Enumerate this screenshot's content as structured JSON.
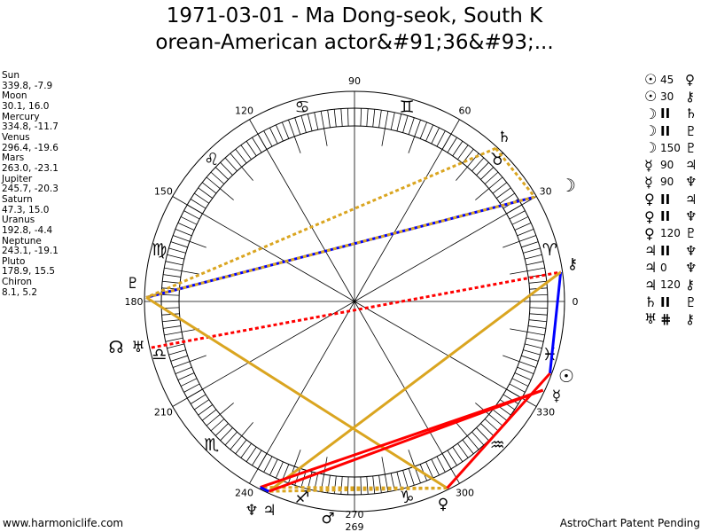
{
  "header": {
    "title_line1": "1971-03-01 - Ma Dong-seok, South K",
    "title_line2": "orean-American actor&#91;36&#93;..."
  },
  "planets": [
    {
      "name": "Sun",
      "coords": "339.8, -7.9",
      "lon": 339.8,
      "glyph": "☉"
    },
    {
      "name": "Moon",
      "coords": "30.1, 16.0",
      "lon": 30.1,
      "glyph": "☽"
    },
    {
      "name": "Mercury",
      "coords": "334.8, -11.7",
      "lon": 334.8,
      "glyph": "☿"
    },
    {
      "name": "Venus",
      "coords": "296.4, -19.6",
      "lon": 296.4,
      "glyph": "♀"
    },
    {
      "name": "Mars",
      "coords": "263.0, -23.1",
      "lon": 263.0,
      "glyph": "♂"
    },
    {
      "name": "Jupiter",
      "coords": "245.7, -20.3",
      "lon": 245.7,
      "glyph": "♃"
    },
    {
      "name": "Saturn",
      "coords": "47.3, 15.0",
      "lon": 47.3,
      "glyph": "♄"
    },
    {
      "name": "Uranus",
      "coords": "192.8, -4.4",
      "lon": 192.8,
      "glyph": "♅"
    },
    {
      "name": "Neptune",
      "coords": "243.1, -19.1",
      "lon": 243.1,
      "glyph": "♆"
    },
    {
      "name": "Pluto",
      "coords": "178.9, 15.5",
      "lon": 178.9,
      "glyph": "♇"
    },
    {
      "name": "Chiron",
      "coords": "8.1, 5.2",
      "lon": 8.1,
      "glyph": "⚷"
    }
  ],
  "north_node_glyph": "☊",
  "signs": [
    "♈",
    "♉",
    "♊",
    "♋",
    "♌",
    "♍",
    "♎",
    "♏",
    "♐",
    "♑",
    "♒",
    "♓"
  ],
  "degree_labels": [
    "0",
    "30",
    "60",
    "90",
    "120",
    "150",
    "180",
    "210",
    "240",
    "270",
    "300",
    "330"
  ],
  "extra_label": "269",
  "aspects": [
    {
      "p1": "☉",
      "type": "45",
      "p2": "♀"
    },
    {
      "p1": "☉",
      "type": "30",
      "p2": "⚷"
    },
    {
      "p1": "☽",
      "type": "II",
      "p2": "♄"
    },
    {
      "p1": "☽",
      "type": "II",
      "p2": "♇"
    },
    {
      "p1": "☽",
      "type": "150",
      "p2": "♇"
    },
    {
      "p1": "☿",
      "type": "90",
      "p2": "♃"
    },
    {
      "p1": "☿",
      "type": "90",
      "p2": "♆"
    },
    {
      "p1": "♀",
      "type": "II",
      "p2": "♃"
    },
    {
      "p1": "♀",
      "type": "II",
      "p2": "♆"
    },
    {
      "p1": "♀",
      "type": "120",
      "p2": "♇"
    },
    {
      "p1": "♃",
      "type": "II",
      "p2": "♆"
    },
    {
      "p1": "♃",
      "type": "0",
      "p2": "♆"
    },
    {
      "p1": "♃",
      "type": "120",
      "p2": "⚷"
    },
    {
      "p1": "♄",
      "type": "II",
      "p2": "♇"
    },
    {
      "p1": "♅",
      "type": "⋕",
      "p2": "⚷"
    }
  ],
  "aspect_lines": [
    {
      "a": "Moon",
      "b": "Pluto",
      "color": "#0000FF",
      "style": "solid"
    },
    {
      "a": "Moon",
      "b": "Pluto",
      "color": "#DAA520",
      "style": "dotted"
    },
    {
      "a": "Saturn",
      "b": "Moon",
      "color": "#DAA520",
      "style": "dotted"
    },
    {
      "a": "Saturn",
      "b": "Pluto",
      "color": "#DAA520",
      "style": "dotted"
    },
    {
      "a": "Sun",
      "b": "Chiron",
      "color": "#0000FF",
      "style": "solid"
    },
    {
      "a": "Uranus",
      "b": "Chiron",
      "color": "#FF0000",
      "style": "dotted"
    },
    {
      "a": "Venus",
      "b": "Pluto",
      "color": "#DAA520",
      "style": "solid"
    },
    {
      "a": "Jupiter",
      "b": "Chiron",
      "color": "#DAA520",
      "style": "solid"
    },
    {
      "a": "Venus",
      "b": "Jupiter",
      "color": "#DAA520",
      "style": "dotted"
    },
    {
      "a": "Venus",
      "b": "Neptune",
      "color": "#DAA520",
      "style": "dotted"
    },
    {
      "a": "Mercury",
      "b": "Jupiter",
      "color": "#FF0000",
      "style": "solid"
    },
    {
      "a": "Mercury",
      "b": "Neptune",
      "color": "#FF0000",
      "style": "solid"
    },
    {
      "a": "Sun",
      "b": "Venus",
      "color": "#FF0000",
      "style": "solid"
    },
    {
      "a": "Jupiter",
      "b": "Neptune",
      "color": "#0000FF",
      "style": "solid"
    }
  ],
  "footer": {
    "left": "www.harmoniclife.com",
    "right": "AstroChart Patent Pending"
  }
}
